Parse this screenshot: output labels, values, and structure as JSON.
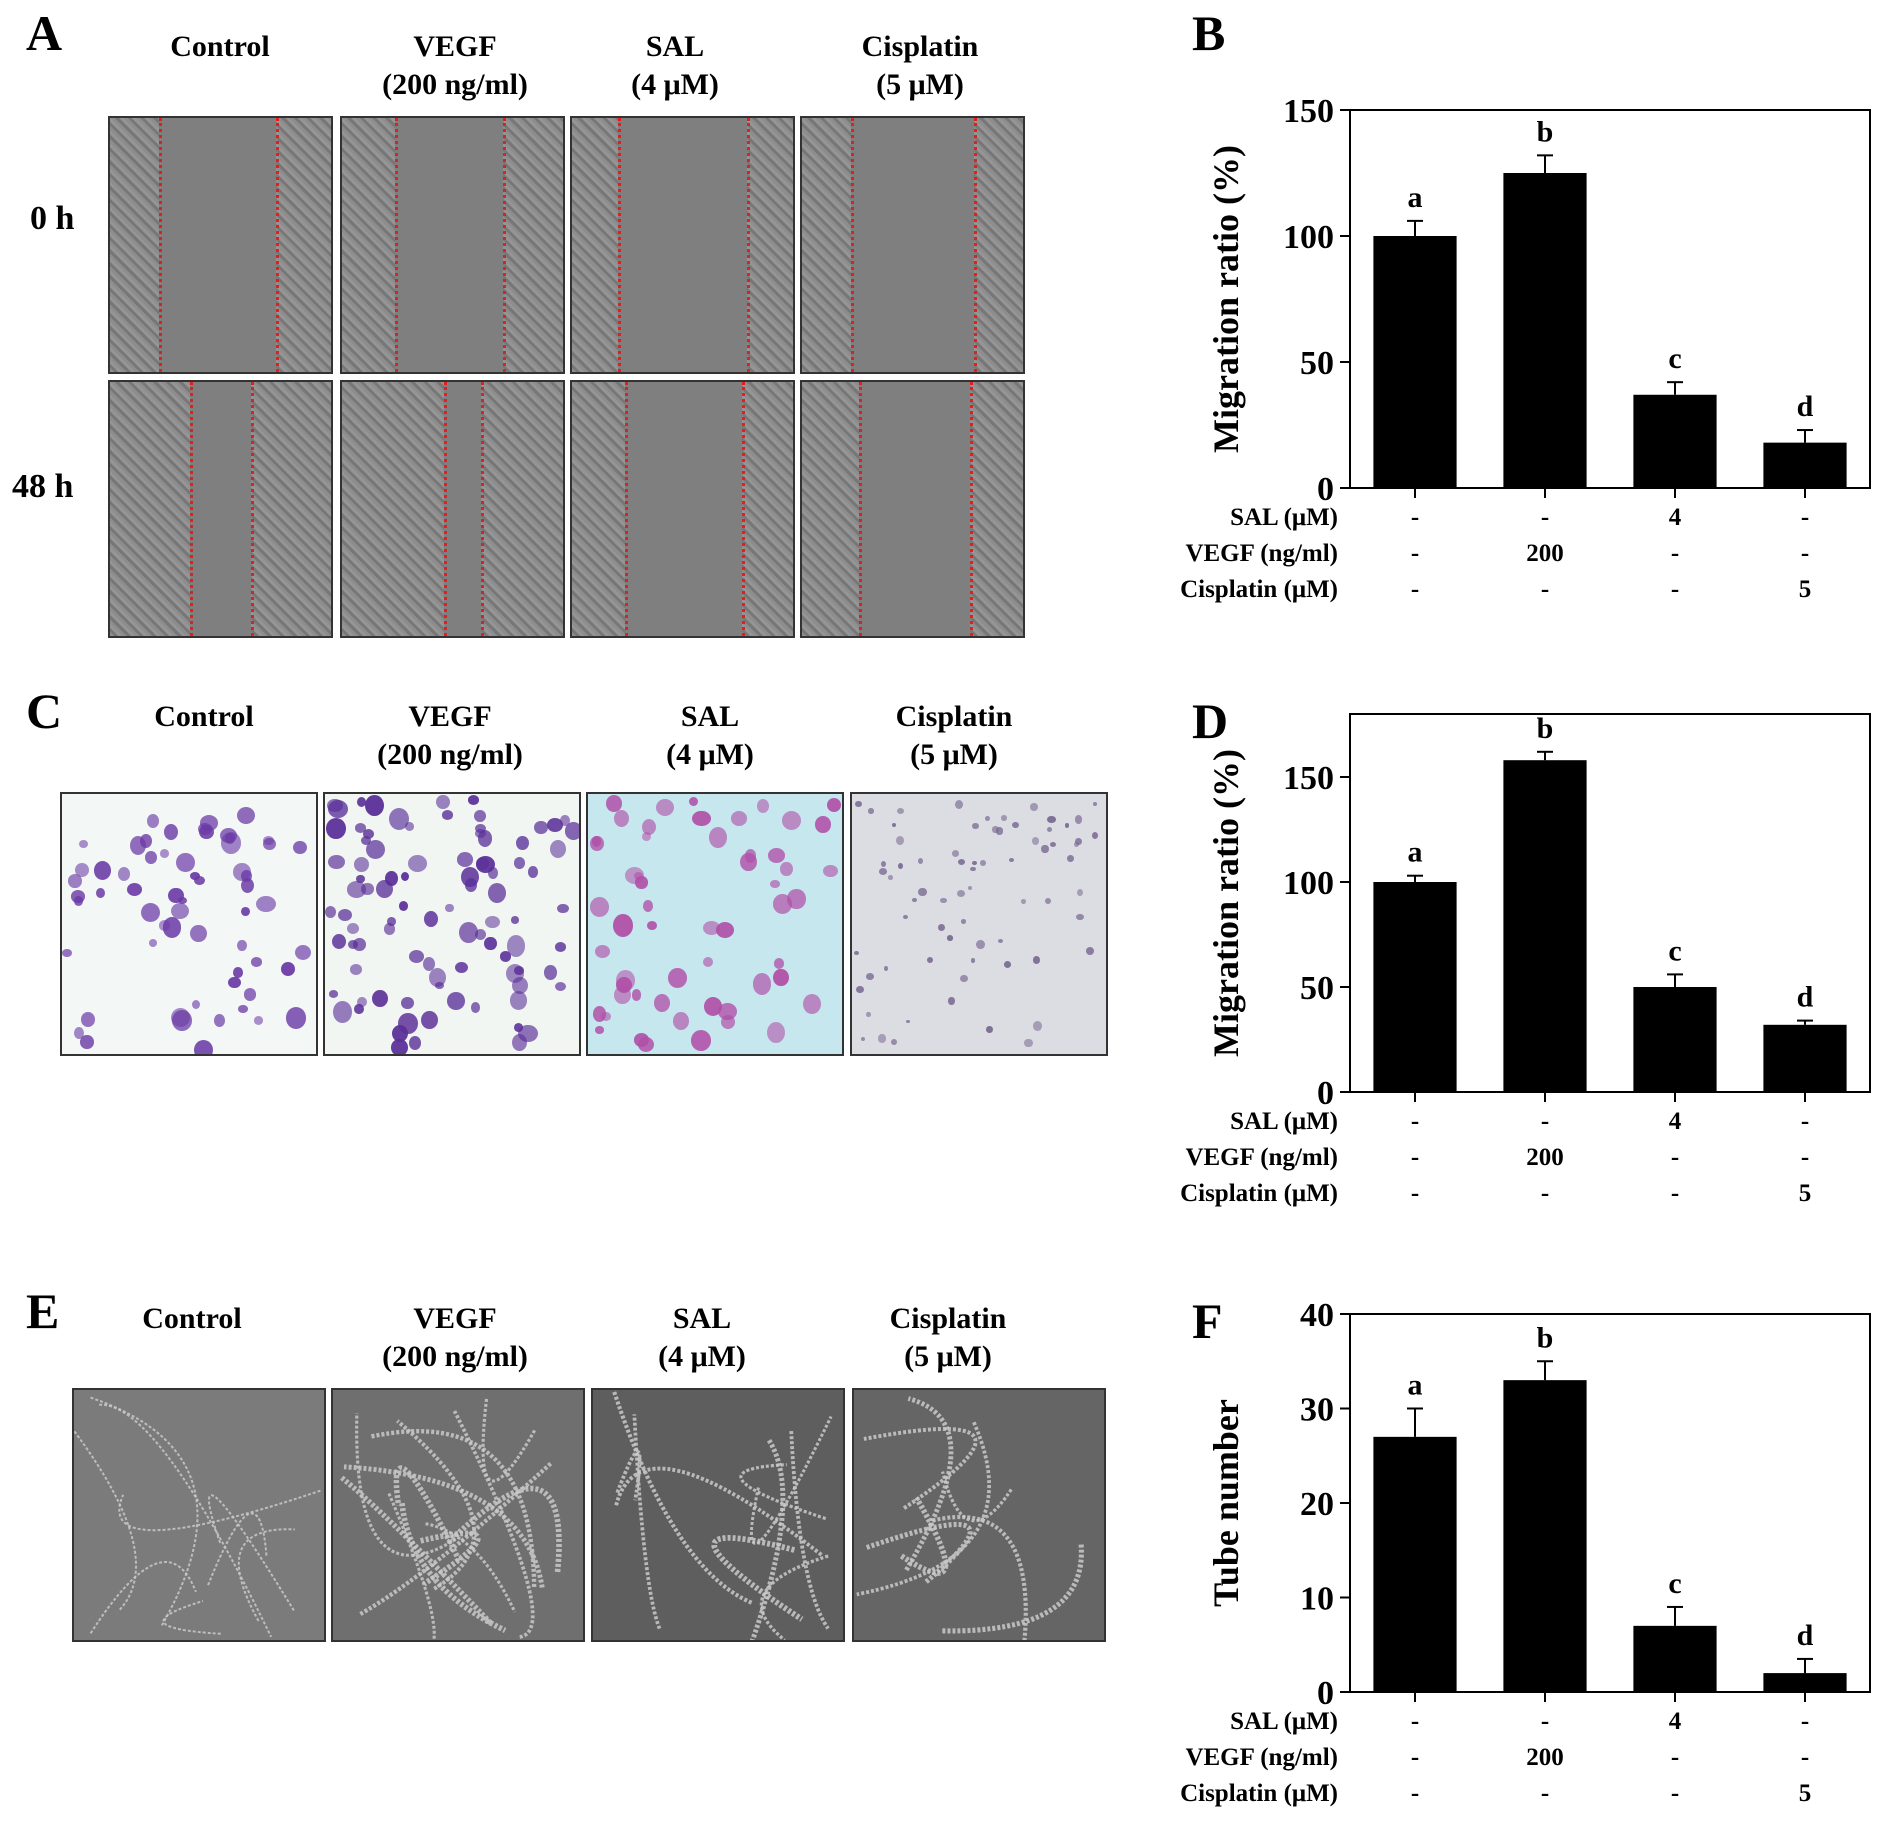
{
  "panels": {
    "A": {
      "letter": "A",
      "columns": [
        {
          "line1": "Control",
          "line2": ""
        },
        {
          "line1": "VEGF",
          "line2": "(200 ng/ml)"
        },
        {
          "line1": "SAL",
          "line2": "(4 μM)"
        },
        {
          "line1": "Cisplatin",
          "line2": "(5 μM)"
        }
      ],
      "rows": [
        "0 h",
        "48 h"
      ]
    },
    "C": {
      "letter": "C",
      "columns": [
        {
          "line1": "Control",
          "line2": ""
        },
        {
          "line1": "VEGF",
          "line2": "(200 ng/ml)"
        },
        {
          "line1": "SAL",
          "line2": "(4 μM)"
        },
        {
          "line1": "Cisplatin",
          "line2": "(5 μM)"
        }
      ]
    },
    "E": {
      "letter": "E",
      "columns": [
        {
          "line1": "Control",
          "line2": ""
        },
        {
          "line1": "VEGF",
          "line2": "(200 ng/ml)"
        },
        {
          "line1": "SAL",
          "line2": "(4 μM)"
        },
        {
          "line1": "Cisplatin",
          "line2": "(5 μM)"
        }
      ]
    }
  },
  "treatment_table": {
    "rows": [
      {
        "name": "SAL (μM)",
        "values": [
          "-",
          "-",
          "4",
          "-"
        ]
      },
      {
        "name": "VEGF (ng/ml)",
        "values": [
          "-",
          "200",
          "-",
          "-"
        ]
      },
      {
        "name": "Cisplatin (μM)",
        "values": [
          "-",
          "-",
          "-",
          "5"
        ]
      }
    ]
  },
  "chart_data": [
    {
      "panel": "B",
      "type": "bar",
      "categories": [
        "Control",
        "VEGF",
        "SAL",
        "Cisplatin"
      ],
      "values": [
        100,
        125,
        37,
        18
      ],
      "errors": [
        6,
        7,
        5,
        5
      ],
      "significance_letters": [
        "a",
        "b",
        "c",
        "d"
      ],
      "xlabel": "",
      "ylabel": "Migration ratio (%)",
      "ylim": [
        0,
        150
      ],
      "yticks": [
        0,
        50,
        100,
        150
      ],
      "bar_color": "#000000"
    },
    {
      "panel": "D",
      "type": "bar",
      "categories": [
        "Control",
        "VEGF",
        "SAL",
        "Cisplatin"
      ],
      "values": [
        100,
        158,
        50,
        32
      ],
      "errors": [
        3,
        4,
        6,
        2
      ],
      "significance_letters": [
        "a",
        "b",
        "c",
        "d"
      ],
      "xlabel": "",
      "ylabel": "Migration ratio (%)",
      "ylim": [
        0,
        180
      ],
      "yticks": [
        0,
        50,
        100,
        150
      ],
      "bar_color": "#000000"
    },
    {
      "panel": "F",
      "type": "bar",
      "categories": [
        "Control",
        "VEGF",
        "SAL",
        "Cisplatin"
      ],
      "values": [
        27,
        33,
        7,
        2
      ],
      "errors": [
        3,
        2,
        2,
        1.5
      ],
      "significance_letters": [
        "a",
        "b",
        "c",
        "d"
      ],
      "xlabel": "",
      "ylabel": "Tube number",
      "ylim": [
        0,
        40
      ],
      "yticks": [
        0,
        10,
        20,
        30,
        40
      ],
      "bar_color": "#000000"
    }
  ]
}
